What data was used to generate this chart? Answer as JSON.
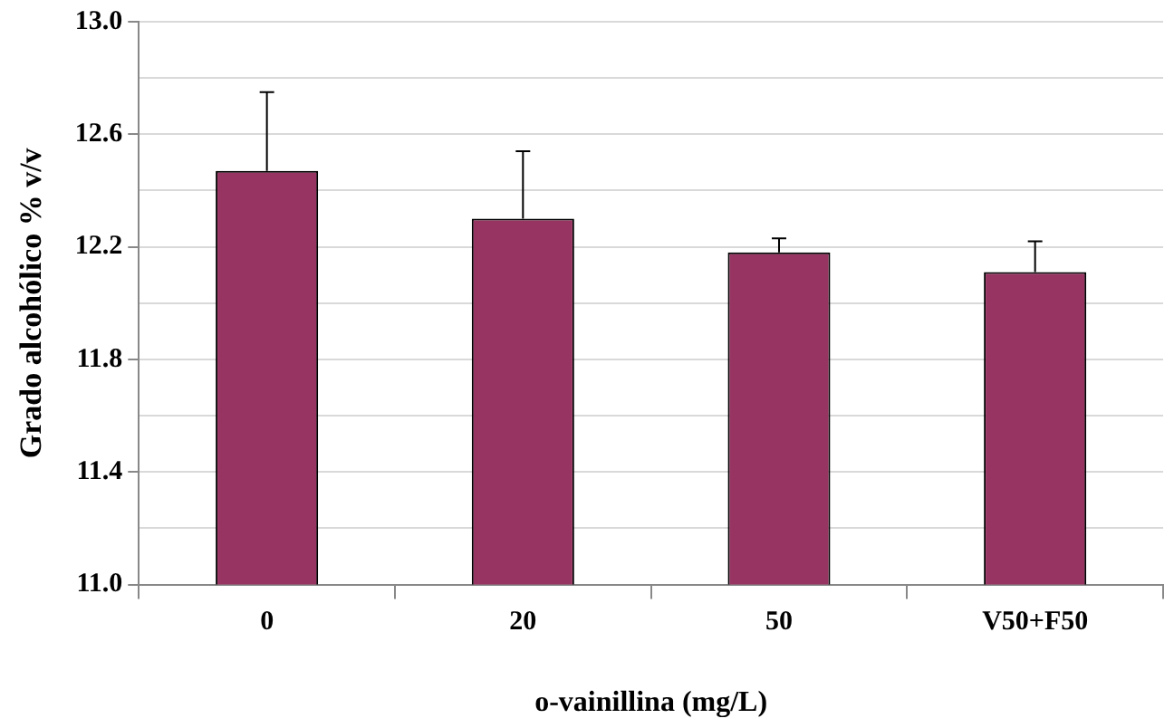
{
  "chart_data": {
    "type": "bar",
    "xlabel": "o-vainillina (mg/L)",
    "ylabel": "Grado alcohólico % v/v",
    "categories": [
      "0",
      "20",
      "50",
      "V50+F50"
    ],
    "values": [
      12.47,
      12.3,
      12.18,
      12.11
    ],
    "errors": [
      [
        12.47,
        12.75
      ],
      [
        12.3,
        12.54
      ],
      [
        12.18,
        12.23
      ],
      [
        12.11,
        12.22
      ]
    ],
    "color": "#983462",
    "ylim": [
      11.0,
      13.0
    ],
    "yticks": [
      {
        "value": 11.0,
        "label": "11.0"
      },
      {
        "value": 11.2,
        "label": null
      },
      {
        "value": 11.4,
        "label": "11.4"
      },
      {
        "value": 11.6,
        "label": null
      },
      {
        "value": 11.8,
        "label": "11.8"
      },
      {
        "value": 12.0,
        "label": null
      },
      {
        "value": 12.2,
        "label": "12.2"
      },
      {
        "value": 12.4,
        "label": null
      },
      {
        "value": 12.6,
        "label": "12.6"
      },
      {
        "value": 12.8,
        "label": null
      },
      {
        "value": 13.0,
        "label": "13.0"
      }
    ],
    "grid": "y",
    "legend": false
  }
}
